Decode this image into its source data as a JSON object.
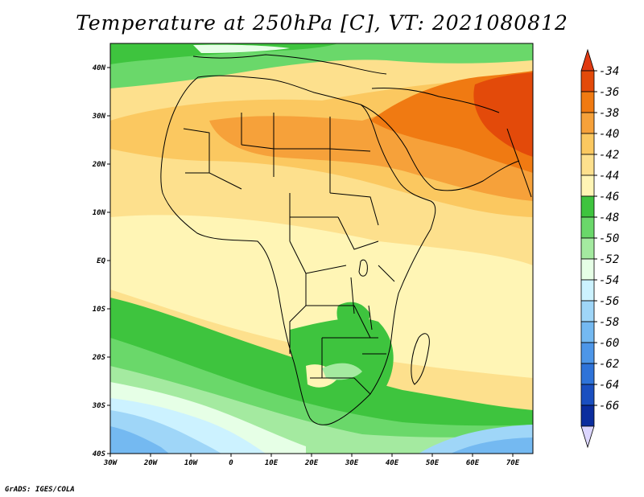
{
  "title": "Temperature at 250hPa [C], VT: 2021080812",
  "credit": "GrADS: IGES/COLA",
  "map": {
    "lon_range": [
      -30,
      75
    ],
    "lat_range": [
      -40,
      45
    ],
    "lon_ticks": [
      {
        "value": -30,
        "label": "30W"
      },
      {
        "value": -20,
        "label": "20W"
      },
      {
        "value": -10,
        "label": "10W"
      },
      {
        "value": 0,
        "label": "0"
      },
      {
        "value": 10,
        "label": "10E"
      },
      {
        "value": 20,
        "label": "20E"
      },
      {
        "value": 30,
        "label": "30E"
      },
      {
        "value": 40,
        "label": "40E"
      },
      {
        "value": 50,
        "label": "50E"
      },
      {
        "value": 60,
        "label": "60E"
      },
      {
        "value": 70,
        "label": "70E"
      }
    ],
    "lat_ticks": [
      {
        "value": 40,
        "label": "40N"
      },
      {
        "value": 30,
        "label": "30N"
      },
      {
        "value": 20,
        "label": "20N"
      },
      {
        "value": 10,
        "label": "10N"
      },
      {
        "value": 0,
        "label": "EQ"
      },
      {
        "value": -10,
        "label": "10S"
      },
      {
        "value": -20,
        "label": "20S"
      },
      {
        "value": -30,
        "label": "30S"
      },
      {
        "value": -40,
        "label": "40S"
      }
    ]
  },
  "colorbar": {
    "labels": [
      "-34",
      "-36",
      "-38",
      "-40",
      "-42",
      "-44",
      "-46",
      "-48",
      "-50",
      "-52",
      "-54",
      "-56",
      "-58",
      "-60",
      "-62",
      "-64",
      "-66"
    ],
    "colors": [
      "#e34a0a",
      "#f07a12",
      "#f6a13a",
      "#fbc860",
      "#fde08d",
      "#fff5b5",
      "#3ec43e",
      "#6ad86a",
      "#a4eaa0",
      "#e6ffe6",
      "#ccf2ff",
      "#9fd6f8",
      "#74b9f1",
      "#4d96e8",
      "#2e73d9",
      "#1a4fc0",
      "#0b2d9e",
      "#061a70"
    ],
    "over_color": "#e03a12",
    "under_color": "#dcd6ff"
  }
}
